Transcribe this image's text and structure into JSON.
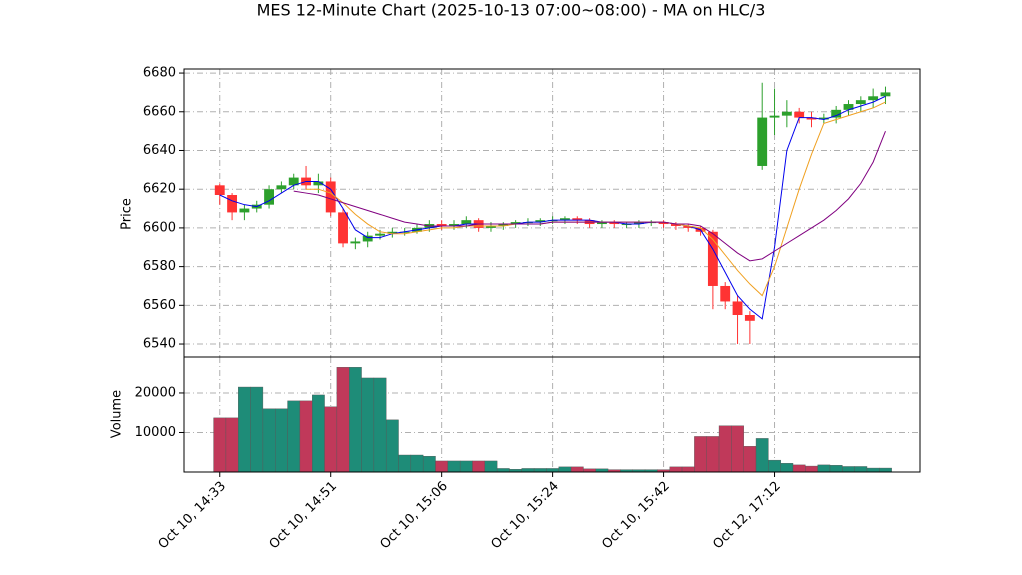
{
  "chart_data": {
    "type": "candlestick",
    "title": "MES 12-Minute Chart (2025-10-13 07:00~08:00) - MA on HLC/3",
    "ylabel": "Price",
    "volume_label": "Volume",
    "x": [
      0,
      1,
      2,
      3,
      4,
      5,
      6,
      7,
      8,
      9,
      10,
      11,
      12,
      13,
      14,
      15,
      16,
      17,
      18,
      19,
      20,
      21,
      22,
      23,
      24,
      25,
      26,
      27,
      28,
      29,
      30,
      31,
      32,
      33,
      34,
      35,
      36,
      37,
      38,
      39,
      40,
      41,
      42,
      43,
      44,
      45,
      46,
      47,
      48,
      49,
      50,
      51,
      52,
      53,
      54
    ],
    "open": [
      6622,
      6617,
      6608,
      6610,
      6612,
      6620,
      6622,
      6626,
      6622,
      6624,
      6608,
      6592,
      6593,
      6596,
      6597,
      6598,
      6598,
      6600,
      6602,
      6601,
      6602,
      6604,
      6600,
      6601,
      6602,
      6603,
      6603,
      6604,
      6604,
      6605,
      6604,
      6602,
      6603,
      6602,
      6602,
      6603,
      6603,
      6602,
      6601,
      6600,
      6598,
      6570,
      6562,
      6555,
      6632,
      6657,
      6658,
      6660,
      6657,
      6656,
      6657,
      6661,
      6664,
      6666,
      6668
    ],
    "high": [
      6623,
      6618,
      6612,
      6614,
      6622,
      6624,
      6628,
      6632,
      6628,
      6626,
      6610,
      6595,
      6598,
      6599,
      6600,
      6600,
      6602,
      6604,
      6604,
      6604,
      6606,
      6605,
      6603,
      6603,
      6604,
      6605,
      6605,
      6606,
      6606,
      6606,
      6605,
      6604,
      6604,
      6603,
      6604,
      6604,
      6604,
      6603,
      6602,
      6601,
      6599,
      6572,
      6565,
      6557,
      6675,
      6672,
      6666,
      6662,
      6660,
      6659,
      6663,
      6666,
      6668,
      6672,
      6673
    ],
    "low": [
      6612,
      6604,
      6604,
      6608,
      6610,
      6618,
      6620,
      6620,
      6618,
      6606,
      6590,
      6589,
      6590,
      6594,
      6595,
      6596,
      6597,
      6598,
      6599,
      6599,
      6600,
      6598,
      6598,
      6599,
      6600,
      6601,
      6601,
      6602,
      6602,
      6602,
      6600,
      6600,
      6600,
      6600,
      6600,
      6601,
      6600,
      6599,
      6598,
      6596,
      6558,
      6558,
      6540,
      6540,
      6630,
      6648,
      6652,
      6654,
      6652,
      6654,
      6654,
      6658,
      6660,
      6662,
      6664
    ],
    "close": [
      6617,
      6608,
      6610,
      6612,
      6620,
      6622,
      6626,
      6622,
      6624,
      6608,
      6592,
      6593,
      6596,
      6597,
      6598,
      6598,
      6600,
      6602,
      6601,
      6602,
      6604,
      6600,
      6601,
      6602,
      6603,
      6603,
      6604,
      6604,
      6605,
      6604,
      6602,
      6603,
      6602,
      6602,
      6603,
      6603,
      6602,
      6601,
      6600,
      6598,
      6570,
      6562,
      6555,
      6552,
      6657,
      6658,
      6660,
      6657,
      6656,
      6657,
      6661,
      6664,
      6666,
      6668,
      6670
    ],
    "volume": [
      13700,
      13700,
      21500,
      21500,
      16000,
      16000,
      18000,
      18000,
      19500,
      16500,
      26500,
      26500,
      23800,
      23800,
      13200,
      4300,
      4300,
      4000,
      2800,
      2800,
      2800,
      2800,
      2800,
      900,
      700,
      900,
      900,
      900,
      1300,
      1300,
      800,
      800,
      600,
      600,
      600,
      600,
      600,
      1300,
      1300,
      9000,
      9000,
      11700,
      11700,
      6500,
      8500,
      3000,
      2200,
      1800,
      1500,
      1800,
      1700,
      1400,
      1400,
      1000,
      1000
    ],
    "up_color": "#2ca02c",
    "down_color": "#ff3333",
    "volume_up_color": "#1e8c78",
    "volume_down_color": "#c0395a",
    "series": [
      {
        "color": "#0000ee",
        "values": [
          6617,
          6614,
          6612,
          6611,
          6614,
          6618,
          6622,
          6624,
          6624,
          6620,
          6610,
          6599,
          6595,
          6595,
          6597,
          6598,
          6599,
          6600,
          6601,
          6601,
          6602,
          6602,
          6602,
          6602,
          6602,
          6603,
          6603,
          6604,
          6604,
          6604,
          6604,
          6603,
          6603,
          6602,
          6602,
          6603,
          6603,
          6602,
          6601,
          6599,
          6589,
          6577,
          6565,
          6558,
          6553,
          6590,
          6640,
          6657,
          6657,
          6656,
          6658,
          6661,
          6663,
          6665,
          6668
        ]
      },
      {
        "color": "#f0a020",
        "values": [
          null,
          null,
          null,
          null,
          null,
          null,
          null,
          6620,
          6620,
          6618,
          6613,
          6607,
          6602,
          6598,
          6597,
          6597,
          6598,
          6599,
          6600,
          6600,
          6601,
          6601,
          6601,
          6601,
          6602,
          6602,
          6602,
          6603,
          6603,
          6603,
          6603,
          6603,
          6603,
          6603,
          6603,
          6603,
          6603,
          6602,
          6601,
          6600,
          6594,
          6586,
          6578,
          6571,
          6565,
          6580,
          6600,
          6620,
          6638,
          6654,
          6656,
          6658,
          6660,
          6662,
          6665
        ]
      },
      {
        "color": "#800080",
        "values": [
          null,
          null,
          null,
          null,
          null,
          null,
          6619,
          6618,
          6617,
          6615,
          6613,
          6611,
          6609,
          6607,
          6605,
          6603,
          6602,
          6601,
          6601,
          6601,
          6601,
          6602,
          6602,
          6602,
          6602,
          6602,
          6602,
          6603,
          6603,
          6603,
          6603,
          6603,
          6603,
          6603,
          6603,
          6603,
          6603,
          6602,
          6602,
          6601,
          6597,
          6592,
          6587,
          6583,
          6584,
          6588,
          6592,
          6596,
          6600,
          6604,
          6609,
          6615,
          6623,
          6634,
          6650
        ]
      }
    ],
    "xlim": [
      -2.9,
      56.8
    ],
    "xticks": [
      {
        "value": 0,
        "label": "Oct 10, 14:33"
      },
      {
        "value": 9,
        "label": "Oct 10, 14:51"
      },
      {
        "value": 18,
        "label": "Oct 10, 15:06"
      },
      {
        "value": 27,
        "label": "Oct 10, 15:24"
      },
      {
        "value": 36,
        "label": "Oct 10, 15:42"
      },
      {
        "value": 45,
        "label": "Oct 12, 17:12"
      }
    ],
    "ylim": [
      6533.3,
      6682.1
    ],
    "yticks": [
      6540,
      6560,
      6580,
      6600,
      6620,
      6640,
      6660,
      6680
    ],
    "volume_lim": [
      0,
      29100
    ],
    "volume_ticks": [
      10000,
      20000
    ],
    "grid": true
  }
}
